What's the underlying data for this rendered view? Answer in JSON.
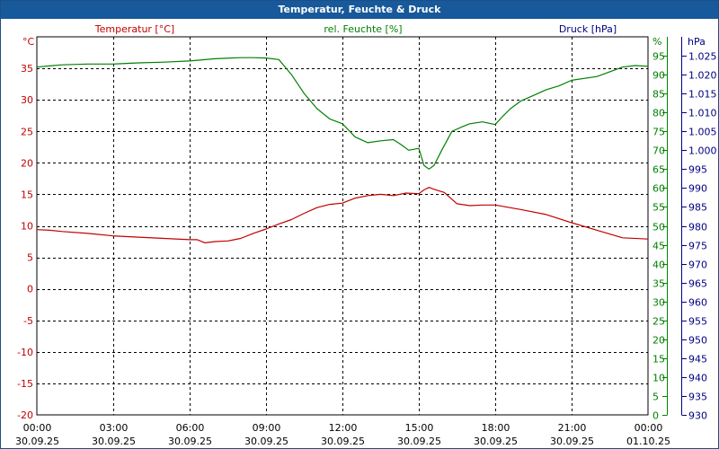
{
  "title": "Temperatur, Feuchte & Druck",
  "colors": {
    "titlebar": "#17599a",
    "temperature": "#c00000",
    "humidity": "#008000",
    "pressure": "#000080",
    "grid": "#000000"
  },
  "chart_data": {
    "type": "line",
    "title": "Temperatur, Feuchte & Druck",
    "grid": true,
    "x_ticks": [
      {
        "time": "00:00",
        "date": "30.09.25"
      },
      {
        "time": "03:00",
        "date": "30.09.25"
      },
      {
        "time": "06:00",
        "date": "30.09.25"
      },
      {
        "time": "09:00",
        "date": "30.09.25"
      },
      {
        "time": "12:00",
        "date": "30.09.25"
      },
      {
        "time": "15:00",
        "date": "30.09.25"
      },
      {
        "time": "18:00",
        "date": "30.09.25"
      },
      {
        "time": "21:00",
        "date": "30.09.25"
      },
      {
        "time": "00:00",
        "date": "01.10.25"
      }
    ],
    "x_unit_hours": [
      0,
      24
    ],
    "axes": {
      "temperature": {
        "label": "Temperatur [°C]",
        "unit": "°C",
        "range": [
          -20,
          40
        ],
        "ticks": [
          "-20",
          "-15",
          "-10",
          "-5",
          "0",
          "5",
          "10",
          "15",
          "20",
          "25",
          "30",
          "35"
        ]
      },
      "humidity": {
        "label": "rel. Feuchte [%]",
        "unit": "%",
        "range": [
          0,
          100
        ],
        "ticks": [
          "0",
          "5",
          "10",
          "15",
          "20",
          "25",
          "30",
          "35",
          "40",
          "45",
          "50",
          "55",
          "60",
          "65",
          "70",
          "75",
          "80",
          "85",
          "90",
          "95"
        ]
      },
      "pressure": {
        "label": "Druck [hPa]",
        "unit": "hPa",
        "range": [
          930,
          1030
        ],
        "ticks": [
          "930",
          "935",
          "940",
          "945",
          "950",
          "955",
          "960",
          "965",
          "970",
          "975",
          "980",
          "985",
          "990",
          "995",
          "1.000",
          "1.005",
          "1.010",
          "1.015",
          "1.020",
          "1.025"
        ]
      }
    },
    "series": [
      {
        "name": "Temperatur [°C]",
        "axis": "temperature",
        "x": [
          0,
          0.5,
          1,
          2,
          3,
          4,
          5,
          6,
          6.3,
          6.6,
          7,
          7.5,
          8,
          8.5,
          9,
          9.5,
          10,
          10.5,
          11,
          11.5,
          12,
          12.5,
          13,
          13.5,
          14,
          14.5,
          15,
          15.2,
          15.4,
          15.6,
          16,
          16.5,
          17,
          17.5,
          18,
          19,
          20,
          21,
          22,
          23,
          24
        ],
        "y": [
          9.4,
          9.3,
          9.1,
          8.8,
          8.4,
          8.2,
          8.0,
          7.8,
          7.8,
          7.3,
          7.5,
          7.6,
          8.0,
          8.8,
          9.5,
          10.3,
          11.0,
          12.0,
          12.9,
          13.4,
          13.6,
          14.4,
          14.8,
          15.0,
          14.8,
          15.2,
          15.1,
          15.7,
          16.1,
          15.8,
          15.3,
          13.5,
          13.2,
          13.3,
          13.3,
          12.6,
          11.8,
          10.5,
          9.3,
          8.1,
          7.9
        ]
      },
      {
        "name": "rel. Feuchte [%]",
        "axis": "humidity",
        "x": [
          0,
          0.5,
          1,
          2,
          3,
          4,
          5,
          6,
          7,
          8,
          8.5,
          9,
          9.5,
          10,
          10.5,
          11,
          11.5,
          12,
          12.5,
          13,
          13.5,
          14,
          14.3,
          14.6,
          15,
          15.2,
          15.4,
          15.6,
          15.9,
          16.3,
          16.7,
          17,
          17.5,
          18,
          18.3,
          18.6,
          19,
          19.5,
          20,
          20.5,
          21,
          22,
          23,
          23.5,
          24
        ],
        "y": [
          92,
          92.3,
          92.6,
          92.8,
          92.8,
          93.1,
          93.3,
          93.6,
          94.2,
          94.5,
          94.5,
          94.4,
          94.0,
          90,
          85,
          81,
          78.3,
          77,
          73.5,
          72,
          72.5,
          72.8,
          71.5,
          70,
          70.5,
          66,
          65,
          66,
          70,
          75,
          76.2,
          77,
          77.5,
          76.8,
          79,
          81,
          83,
          84.5,
          86,
          87,
          88.5,
          89.5,
          92,
          92.4,
          92.2
        ]
      }
    ]
  }
}
